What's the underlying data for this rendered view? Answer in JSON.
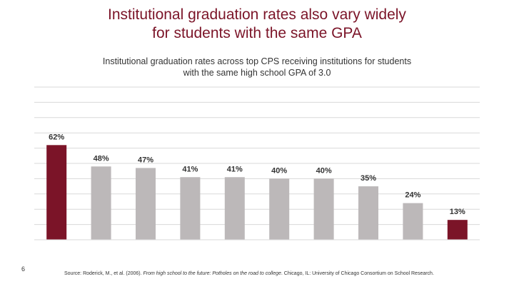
{
  "slide": {
    "title_line1": "Institutional graduation rates also vary widely",
    "title_line2": "for students with the same GPA",
    "subtitle_line1": "Institutional graduation rates across top CPS receiving institutions for students",
    "subtitle_line2": "with the same high school GPA of 3.0",
    "page_number": "6",
    "source_prefix": "Source: Roderick, M., et al. (2006). ",
    "source_italic": "From high school to the future: Potholes on the road to college",
    "source_suffix": ". Chicago, IL: University of Chicago Consortium on School Research."
  },
  "colors": {
    "highlight": "#7b1428",
    "bar": "#bcb8b9",
    "grid": "#d9d9d9",
    "title": "#7b1428"
  },
  "chart_data": {
    "type": "bar",
    "title": "Institutional graduation rates across top CPS receiving institutions for students with the same high school GPA of 3.0",
    "xlabel": "",
    "ylabel": "",
    "ylim": [
      0,
      100
    ],
    "grid": true,
    "legend": "none",
    "categories": [
      "",
      "",
      "",
      "",
      "",
      "",
      "",
      "",
      "",
      ""
    ],
    "values": [
      62,
      48,
      47,
      41,
      41,
      40,
      40,
      35,
      24,
      13
    ],
    "labels": [
      "62%",
      "48%",
      "47%",
      "41%",
      "41%",
      "40%",
      "40%",
      "35%",
      "24%",
      "13%"
    ],
    "highlighted": [
      0,
      9
    ]
  }
}
